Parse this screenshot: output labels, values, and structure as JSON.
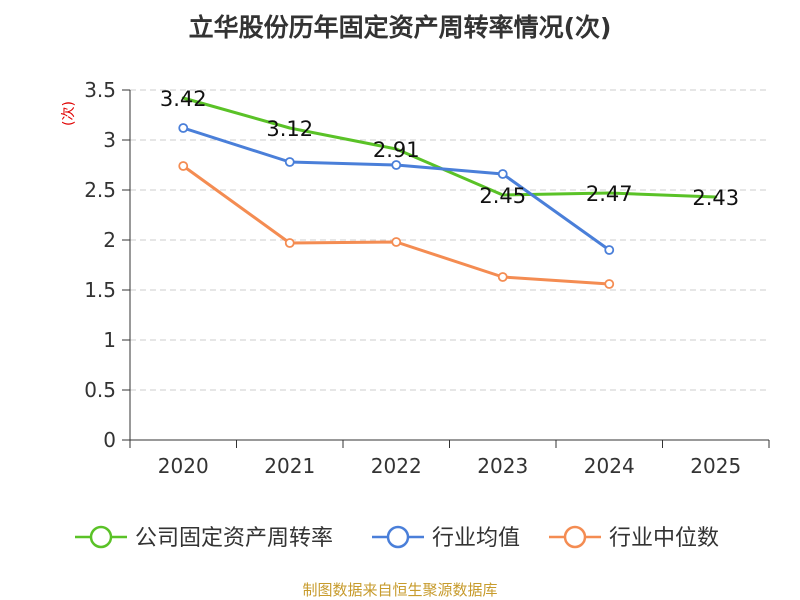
{
  "chart_data": {
    "type": "line",
    "title": "立华股份历年固定资产周转率情况(次)",
    "ylabel": "(次)",
    "xlabel": "",
    "categories": [
      "2020",
      "2021",
      "2022",
      "2023",
      "2024",
      "2025"
    ],
    "ylim": [
      0,
      3.5
    ],
    "yticks": [
      "0",
      "0.5",
      "1",
      "1.5",
      "2",
      "2.5",
      "3",
      "3.5"
    ],
    "grid": true,
    "legend_position": "bottom",
    "series": [
      {
        "name": "公司固定资产周转率",
        "color": "#5ac227",
        "values": [
          3.42,
          3.12,
          2.91,
          2.45,
          2.47,
          2.43
        ],
        "labels": [
          "3.42",
          "3.12",
          "2.91",
          "2.45",
          "2.47",
          "2.43"
        ],
        "show_labels": true
      },
      {
        "name": "行业均值",
        "color": "#4a7fd9",
        "values": [
          3.12,
          2.78,
          2.75,
          2.66,
          1.9,
          null
        ],
        "show_labels": false
      },
      {
        "name": "行业中位数",
        "color": "#f48c52",
        "values": [
          2.74,
          1.97,
          1.98,
          1.63,
          1.56,
          null
        ],
        "show_labels": false
      }
    ]
  },
  "source": "制图数据来自恒生聚源数据库"
}
